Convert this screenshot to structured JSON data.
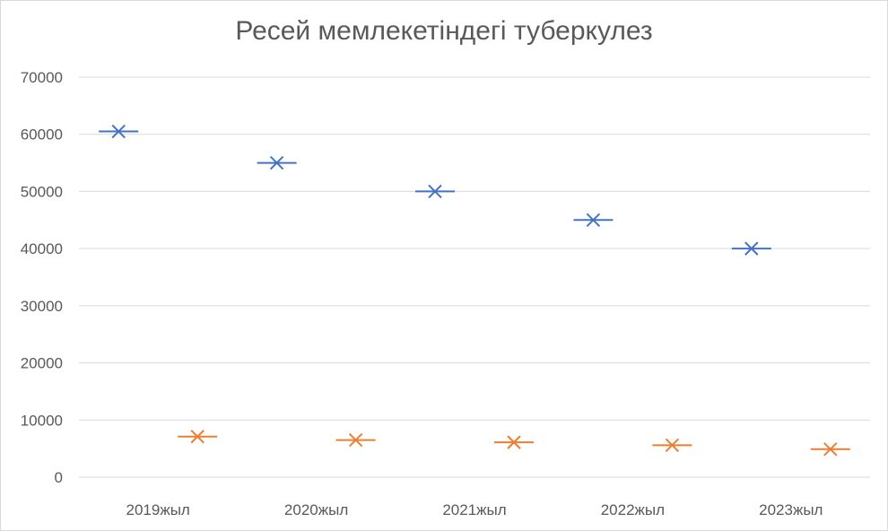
{
  "chart_data": {
    "type": "scatter",
    "title": "Ресей мемлекетіндегі туберкулез",
    "categories": [
      "2019жыл",
      "2020жыл",
      "2021жыл",
      "2022жыл",
      "2023жыл"
    ],
    "series": [
      {
        "values": [
          60500,
          55000,
          50000,
          45000,
          40000
        ],
        "color": "#4472c4",
        "marker": "star"
      },
      {
        "values": [
          7100,
          6500,
          6100,
          5600,
          4900
        ],
        "color": "#ed7d31",
        "marker": "star"
      }
    ],
    "ylim": [
      0,
      70000
    ],
    "yticks": [
      "0",
      "10000",
      "20000",
      "30000",
      "40000",
      "50000",
      "60000",
      "70000"
    ],
    "grid": true,
    "legend": "none"
  }
}
